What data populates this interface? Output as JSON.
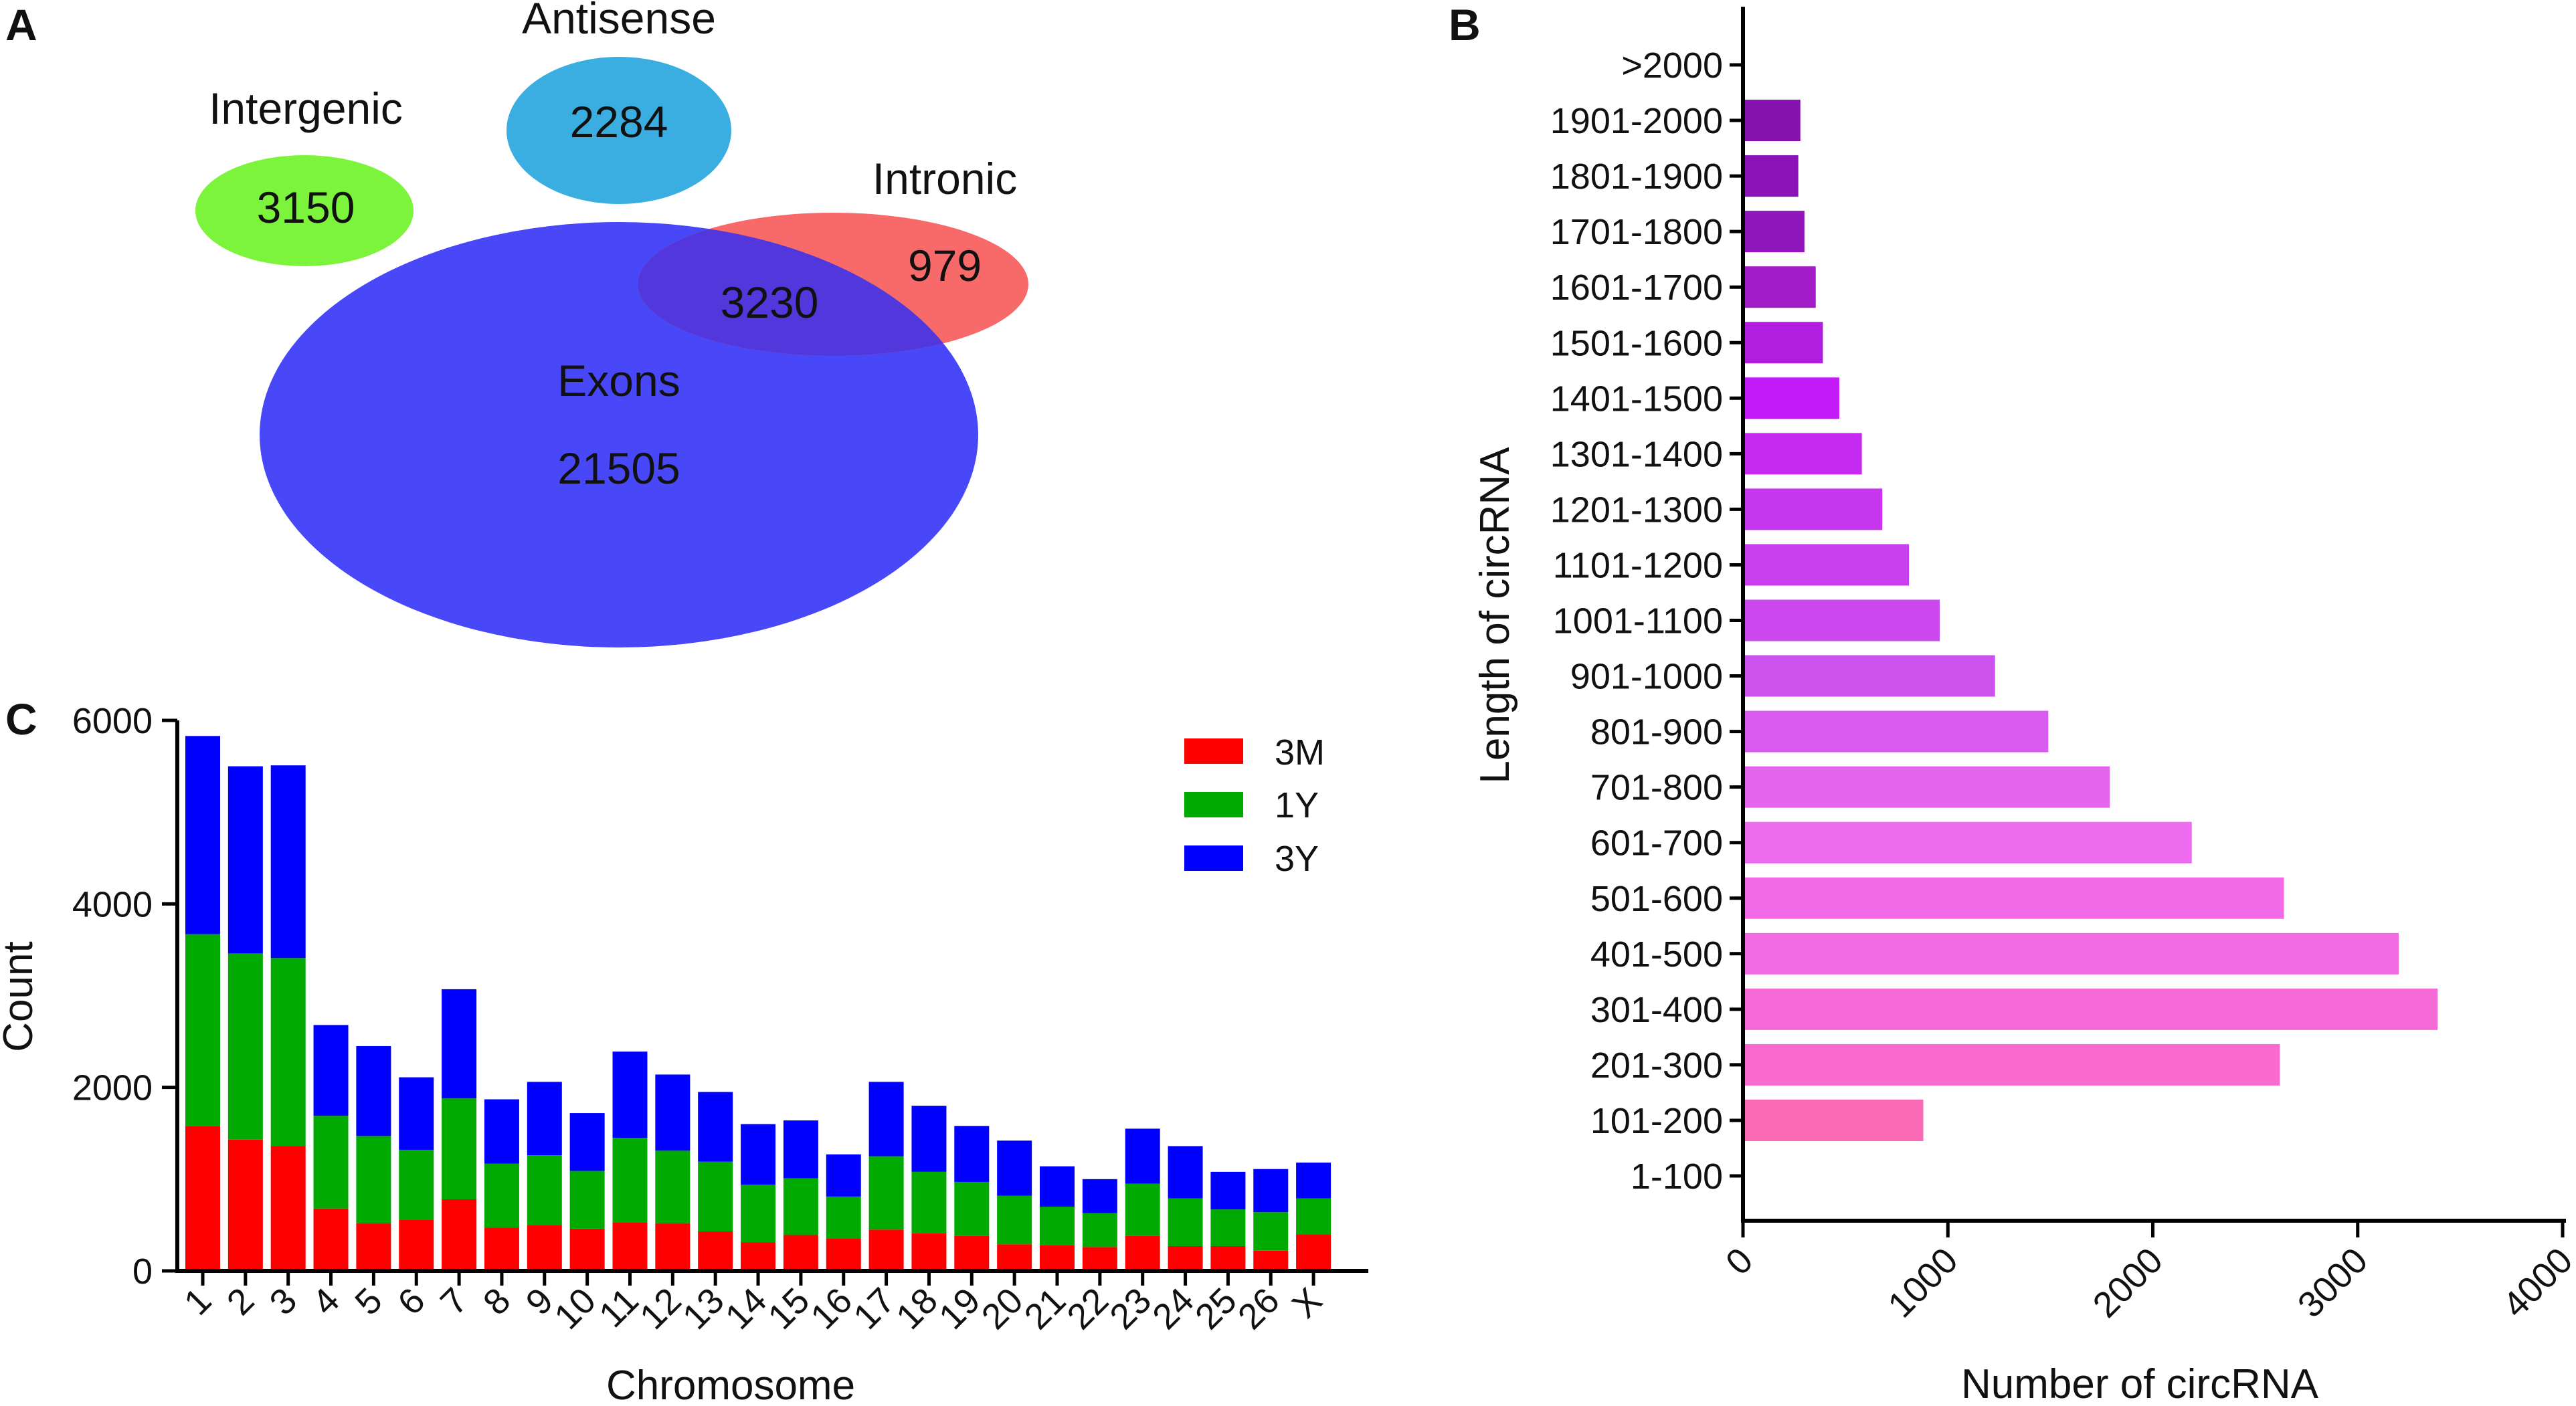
{
  "panels": {
    "a": "A",
    "b": "B",
    "c": "C"
  },
  "colors": {
    "exons": "#4848f8",
    "intronic": "#f86a6a",
    "intergenic": "#7cf43c",
    "antisense": "#3aaee0"
  },
  "chart_data": [
    {
      "type": "venn",
      "panel": "A",
      "sets": [
        {
          "name": "Intergenic",
          "label": "Intergenic",
          "value": "3150",
          "color": "#7cf43c"
        },
        {
          "name": "Antisense",
          "label": "Antisense",
          "value": "2284",
          "color": "#3aaee0"
        },
        {
          "name": "Intronic",
          "label": "Intronic",
          "value": "979",
          "color": "#f86a6a"
        },
        {
          "name": "Exons",
          "label": "Exons",
          "value": "21505",
          "color": "#4848f8"
        }
      ],
      "overlap": {
        "sets": [
          "Exons",
          "Intronic"
        ],
        "value": "3230"
      }
    },
    {
      "type": "bar",
      "orientation": "horizontal",
      "panel": "B",
      "xlabel": "Number of circRNA",
      "ylabel": "Length of circRNA",
      "xlim": [
        0,
        4000
      ],
      "xticks": [
        "0",
        "1000",
        "2000",
        "3000",
        "4000"
      ],
      "categories": [
        ">2000",
        "1901-2000",
        "1801-1900",
        "1701-1800",
        "1601-1700",
        "1501-1600",
        "1401-1500",
        "1301-1400",
        "1201-1300",
        "1101-1200",
        "1001-1100",
        "901-1000",
        "801-900",
        "701-800",
        "601-700",
        "501-600",
        "401-500",
        "301-400",
        "201-300",
        "101-200",
        "1-100"
      ],
      "values": [
        0,
        280,
        270,
        300,
        355,
        390,
        470,
        580,
        680,
        810,
        960,
        1230,
        1490,
        1790,
        2190,
        2640,
        3200,
        3390,
        2620,
        880,
        0
      ],
      "colors": [
        "#7a0fa8",
        "#8612b0",
        "#8a14b6",
        "#8e16ba",
        "#a11cc8",
        "#b21ee0",
        "#c21af8",
        "#c42af0",
        "#c636ee",
        "#c840ee",
        "#ca48ee",
        "#cc52ee",
        "#d85aee",
        "#e466ee",
        "#ee6aee",
        "#f26ae8",
        "#f46ae2",
        "#f66ad8",
        "#f86ad0",
        "#fa6ab4",
        "#fa6aa8"
      ]
    },
    {
      "type": "bar",
      "stacked": true,
      "panel": "C",
      "xlabel": "Chromosome",
      "ylabel": "Count",
      "ylim": [
        0,
        6000
      ],
      "yticks": [
        "0",
        "2000",
        "4000",
        "6000"
      ],
      "categories": [
        "1",
        "2",
        "3",
        "4",
        "5",
        "6",
        "7",
        "8",
        "9",
        "10",
        "11",
        "12",
        "13",
        "14",
        "15",
        "16",
        "17",
        "18",
        "19",
        "20",
        "21",
        "22",
        "23",
        "24",
        "25",
        "26",
        "X"
      ],
      "legend_position": "top-right",
      "series": [
        {
          "name": "3M",
          "color": "#ff0000",
          "values": [
            1580,
            1430,
            1360,
            680,
            520,
            560,
            780,
            470,
            500,
            460,
            530,
            520,
            430,
            310,
            390,
            350,
            450,
            410,
            380,
            290,
            280,
            260,
            380,
            270,
            270,
            220,
            400
          ]
        },
        {
          "name": "1Y",
          "color": "#00aa00",
          "values": [
            2090,
            2030,
            2050,
            1010,
            950,
            760,
            1100,
            700,
            760,
            630,
            920,
            790,
            760,
            630,
            620,
            460,
            800,
            670,
            590,
            530,
            420,
            370,
            570,
            520,
            400,
            420,
            390
          ]
        },
        {
          "name": "3Y",
          "color": "#0000ff",
          "values": [
            2160,
            2040,
            2100,
            990,
            980,
            790,
            1190,
            700,
            800,
            630,
            940,
            830,
            760,
            660,
            630,
            460,
            810,
            720,
            610,
            600,
            440,
            370,
            600,
            570,
            410,
            470,
            390
          ]
        }
      ]
    }
  ]
}
